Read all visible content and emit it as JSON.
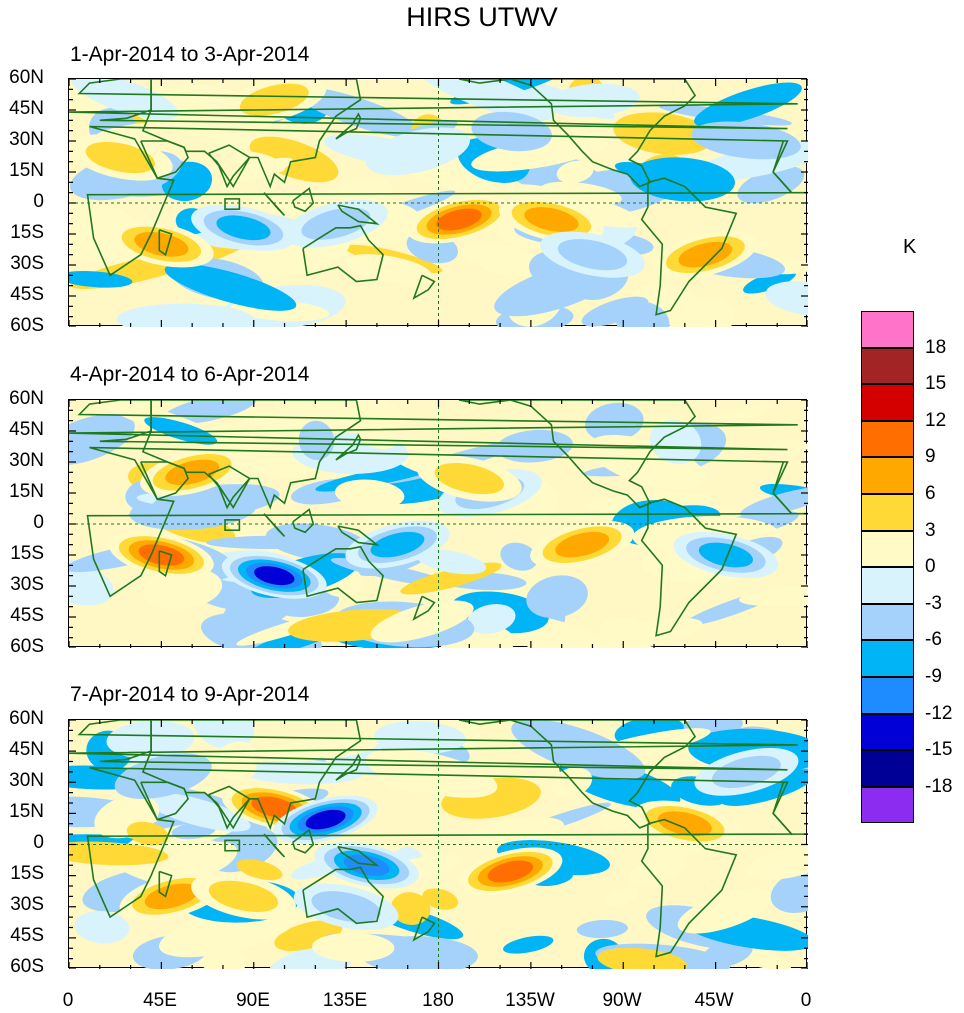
{
  "title": "HIRS UTWV",
  "unit": "K",
  "panels": [
    {
      "title": "1-Apr-2014 to 3-Apr-2014"
    },
    {
      "title": "4-Apr-2014 to 6-Apr-2014"
    },
    {
      "title": "7-Apr-2014 to 9-Apr-2014"
    }
  ],
  "lat_labels": [
    "60N",
    "45N",
    "30N",
    "15N",
    "0",
    "15S",
    "30S",
    "45S",
    "60S"
  ],
  "lon_labels": [
    "0",
    "45E",
    "90E",
    "135E",
    "180",
    "135W",
    "90W",
    "45W",
    "0"
  ],
  "colorbar": {
    "labels": [
      "18",
      "15",
      "12",
      "9",
      "6",
      "3",
      "0",
      "-3",
      "-6",
      "-9",
      "-12",
      "-15",
      "-18"
    ],
    "colors": [
      "#ff74c8",
      "#a32424",
      "#d40000",
      "#ff6e00",
      "#ffa800",
      "#ffd935",
      "#fffac6",
      "#d8f3fb",
      "#a4d2fb",
      "#00b4f5",
      "#1e8cff",
      "#0000d7",
      "#000096",
      "#8c2cf0"
    ]
  },
  "chart_data": {
    "type": "heatmap",
    "title": "HIRS UTWV",
    "colorbar_unit": "K",
    "lat_range": [
      -60,
      60
    ],
    "lon_range": [
      0,
      360
    ],
    "levels": [
      -18,
      -15,
      -12,
      -9,
      -6,
      -3,
      0,
      3,
      6,
      9,
      12,
      15,
      18
    ],
    "panels": [
      {
        "title": "1-Apr-2014 to 3-Apr-2014",
        "anomalies": [
          {
            "lon": 45,
            "lat": -20,
            "value": 9
          },
          {
            "lon": 100,
            "lat": 50,
            "value": 6
          },
          {
            "lon": 25,
            "lat": 22,
            "value": 6
          },
          {
            "lon": 190,
            "lat": -8,
            "value": 12
          },
          {
            "lon": 235,
            "lat": -8,
            "value": 9
          },
          {
            "lon": 310,
            "lat": -25,
            "value": 9
          },
          {
            "lon": 85,
            "lat": -12,
            "value": -9
          },
          {
            "lon": 130,
            "lat": -10,
            "value": -6
          },
          {
            "lon": 255,
            "lat": -25,
            "value": -6
          },
          {
            "lon": 170,
            "lat": 25,
            "value": -3
          }
        ]
      },
      {
        "title": "4-Apr-2014 to 6-Apr-2014",
        "anomalies": [
          {
            "lon": 45,
            "lat": -15,
            "value": 12
          },
          {
            "lon": 60,
            "lat": 25,
            "value": 9
          },
          {
            "lon": 100,
            "lat": -25,
            "value": -15
          },
          {
            "lon": 205,
            "lat": 15,
            "value": -6
          },
          {
            "lon": 195,
            "lat": 22,
            "value": 6
          },
          {
            "lon": 250,
            "lat": -10,
            "value": 9
          },
          {
            "lon": 320,
            "lat": -15,
            "value": -9
          },
          {
            "lon": 160,
            "lat": -10,
            "value": -9
          }
        ]
      },
      {
        "title": "7-Apr-2014 to 9-Apr-2014",
        "anomalies": [
          {
            "lon": 100,
            "lat": 18,
            "value": 12
          },
          {
            "lon": 125,
            "lat": 12,
            "value": -15
          },
          {
            "lon": 145,
            "lat": -10,
            "value": -12
          },
          {
            "lon": 215,
            "lat": -13,
            "value": 12
          },
          {
            "lon": 300,
            "lat": 10,
            "value": 9
          },
          {
            "lon": 50,
            "lat": -25,
            "value": 9
          },
          {
            "lon": 85,
            "lat": -25,
            "value": 6
          },
          {
            "lon": 330,
            "lat": 35,
            "value": -6
          },
          {
            "lon": 135,
            "lat": -30,
            "value": -6
          }
        ]
      }
    ]
  }
}
